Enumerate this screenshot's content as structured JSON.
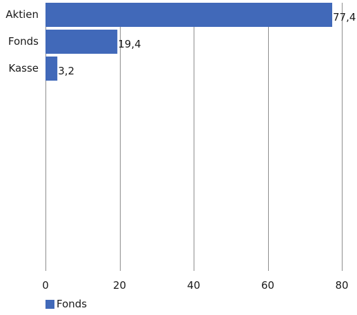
{
  "chart_data": {
    "type": "bar",
    "orientation": "horizontal",
    "categories": [
      "Aktien",
      "Fonds",
      "Kasse"
    ],
    "series": [
      {
        "name": "Fonds",
        "values": [
          77.4,
          19.4,
          3.2
        ],
        "labels": [
          "77,4",
          "19,4",
          "3,2"
        ]
      }
    ],
    "xlim": [
      0,
      80
    ],
    "xticks": [
      0,
      20,
      40,
      60,
      80
    ],
    "xtick_labels": [
      "0",
      "20",
      "40",
      "60",
      "80"
    ],
    "grid": true,
    "legend_position": "bottom-left",
    "bar_color": "#4169b9",
    "grid_color": "#8c8c8c"
  },
  "legend": {
    "label": "Fonds"
  }
}
